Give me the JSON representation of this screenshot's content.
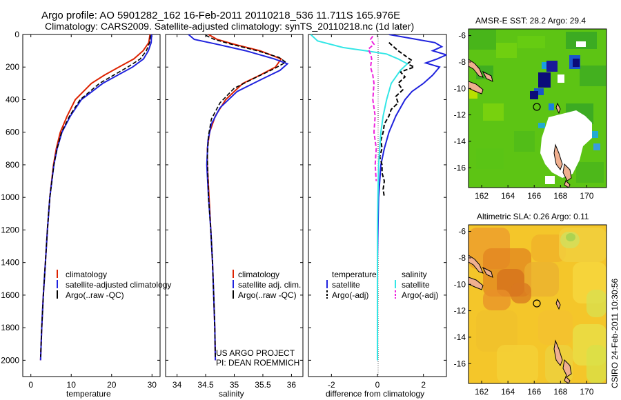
{
  "header": {
    "title_line1": "Argo profile: AO 5901282_162 16-Feb-2011 20110218_536 11.711S 165.976E",
    "title_line2": "Climatology: CARS2009. Satellite-adjusted climatology: synTS_20110218.nc (1d later)"
  },
  "side_label": "CSIRO 24-Feb-2011 10:30:56",
  "project_text": [
    "US ARGO PROJECT",
    "PI: DEAN ROEMMICH"
  ],
  "colors": {
    "climatology": "#dd2200",
    "satellite": "#1f22dd",
    "argo": "#000000",
    "sal_satellite": "#33e6e6",
    "sal_argo": "#ee22dd"
  },
  "chart_data": [
    {
      "type": "line",
      "id": "temperature",
      "xlabel": "temperature",
      "ylabel": "",
      "xlim": [
        -2,
        32
      ],
      "ylim": [
        2100,
        0
      ],
      "xticks": [
        0,
        10,
        20,
        30
      ],
      "yticks": [
        0,
        200,
        400,
        600,
        800,
        1000,
        1200,
        1400,
        1600,
        1800,
        2000
      ],
      "legend": [
        "climatology",
        "satellite-adjusted climatology",
        "Argo(..raw -QC)"
      ],
      "series": [
        {
          "name": "climatology",
          "y": [
            0,
            50,
            100,
            150,
            200,
            250,
            300,
            400,
            500,
            600,
            700,
            800,
            1000,
            1200,
            1400,
            1600,
            1800,
            2000
          ],
          "x": [
            29.5,
            29.2,
            27.8,
            25.5,
            21.8,
            18.2,
            15.0,
            11.0,
            9.0,
            7.3,
            6.3,
            5.6,
            4.7,
            4.1,
            3.6,
            3.1,
            2.7,
            2.4
          ]
        },
        {
          "name": "satellite-adjusted climatology",
          "y": [
            0,
            50,
            100,
            150,
            200,
            250,
            300,
            400,
            500,
            600,
            700,
            800,
            1000,
            1200,
            1400,
            1600,
            1800,
            2000
          ],
          "x": [
            29.9,
            29.8,
            29.1,
            27.9,
            25.2,
            21.5,
            17.8,
            12.5,
            9.8,
            7.7,
            6.5,
            5.7,
            4.7,
            4.1,
            3.6,
            3.1,
            2.7,
            2.4
          ]
        },
        {
          "name": "Argo(..raw -QC)",
          "y": [
            5,
            50,
            100,
            150,
            200,
            250,
            300,
            400,
            500,
            600,
            700,
            800,
            1000,
            1200,
            1400,
            1600,
            1800,
            1980
          ],
          "x": [
            29.6,
            29.4,
            28.6,
            27.1,
            24.0,
            20.5,
            17.0,
            12.2,
            9.6,
            7.6,
            6.5,
            5.7,
            4.7,
            4.1,
            3.6,
            3.1,
            2.7,
            2.4
          ]
        }
      ]
    },
    {
      "type": "line",
      "id": "salinity",
      "xlabel": "salinity",
      "ylabel": "",
      "xlim": [
        33.8,
        36.2
      ],
      "ylim": [
        2100,
        0
      ],
      "xticks": [
        34,
        34.5,
        35,
        35.5,
        36
      ],
      "legend": [
        "climatology",
        "satellite adj. clim.",
        "Argo(..raw -QC)"
      ],
      "series": [
        {
          "name": "climatology",
          "y": [
            0,
            30,
            60,
            100,
            150,
            200,
            250,
            300,
            400,
            500,
            600,
            700,
            800,
            1000,
            1200,
            1400,
            1600,
            1800,
            2000
          ],
          "x": [
            34.55,
            34.7,
            35.0,
            35.45,
            35.82,
            35.72,
            35.45,
            35.15,
            34.85,
            34.67,
            34.57,
            34.53,
            34.53,
            34.56,
            34.59,
            34.62,
            34.64,
            34.66,
            34.67
          ]
        },
        {
          "name": "satellite adj. clim.",
          "y": [
            0,
            30,
            60,
            100,
            150,
            180,
            220,
            280,
            350,
            450,
            550,
            650,
            800,
            1000,
            1200,
            1400,
            1600,
            1800,
            2000
          ],
          "x": [
            34.2,
            34.3,
            34.7,
            35.2,
            35.7,
            35.93,
            35.8,
            35.45,
            35.05,
            34.75,
            34.6,
            34.54,
            34.52,
            34.55,
            34.59,
            34.62,
            34.64,
            34.66,
            34.67
          ]
        },
        {
          "name": "Argo(..raw -QC)",
          "y": [
            5,
            30,
            60,
            100,
            140,
            170,
            210,
            260,
            330,
            420,
            520,
            620,
            750,
            1000,
            1200,
            1400,
            1600,
            1800,
            1980
          ],
          "x": [
            34.5,
            34.65,
            34.95,
            35.4,
            35.78,
            35.9,
            35.7,
            35.4,
            35.0,
            34.75,
            34.6,
            34.55,
            34.53,
            34.55,
            34.59,
            34.62,
            34.64,
            34.66,
            34.67
          ]
        }
      ]
    },
    {
      "type": "line",
      "id": "difference",
      "xlabel": "difference from climatology",
      "ylabel": "",
      "xlim": [
        -3,
        3
      ],
      "ylim": [
        2100,
        0
      ],
      "xticks": [
        -2,
        0,
        2
      ],
      "legend_titles": [
        "temperature",
        "salinity"
      ],
      "legend": [
        "satellite",
        "Argo(-adj)",
        "satellite",
        "Argo(-adj)"
      ],
      "series": [
        {
          "name": "temperature satellite",
          "y": [
            0,
            25,
            50,
            75,
            100,
            125,
            150,
            175,
            200,
            250,
            300,
            350,
            400,
            500,
            600,
            700,
            800,
            1000,
            1200,
            1400,
            1600,
            1800,
            2000
          ],
          "x": [
            0.5,
            1.5,
            2.5,
            2.8,
            2.4,
            3.0,
            2.6,
            2.1,
            2.7,
            2.4,
            2.0,
            1.5,
            1.2,
            0.8,
            0.5,
            0.3,
            0.15,
            0.05,
            0.02,
            0.0,
            0.0,
            0.0,
            0.0
          ]
        },
        {
          "name": "temperature Argo(-adj)",
          "y": [
            50,
            100,
            130,
            160,
            180,
            200,
            230,
            260,
            300,
            340,
            380,
            420,
            460,
            500,
            550,
            600,
            650,
            700,
            750,
            800,
            850,
            900,
            950,
            1000
          ],
          "x": [
            0.5,
            0.9,
            1.2,
            1.5,
            1.3,
            1.6,
            1.0,
            1.2,
            0.9,
            1.1,
            0.8,
            0.9,
            0.6,
            0.5,
            0.3,
            0.25,
            0.15,
            0.2,
            0.1,
            0.2,
            0.2,
            0.3,
            0.25,
            0.3
          ]
        },
        {
          "name": "salinity satellite",
          "y": [
            0,
            40,
            80,
            100,
            120,
            150,
            180,
            220,
            260,
            300,
            400,
            500,
            600,
            700,
            800,
            1000,
            1200,
            1400,
            1600,
            1800,
            2000
          ],
          "x": [
            -2.9,
            -2.6,
            -1.5,
            -0.5,
            0.4,
            0.9,
            1.3,
            1.0,
            0.8,
            0.6,
            0.4,
            0.25,
            0.15,
            0.1,
            0.05,
            0.02,
            0.0,
            0.0,
            0.0,
            0.0,
            0.0
          ]
        },
        {
          "name": "salinity Argo(-adj)",
          "y": [
            10,
            30,
            60,
            90,
            120,
            150,
            200,
            250,
            300,
            400,
            500,
            600,
            700,
            800,
            900
          ],
          "x": [
            -0.2,
            -0.3,
            -0.15,
            -0.4,
            -0.3,
            -0.25,
            -0.3,
            -0.2,
            -0.15,
            -0.2,
            -0.1,
            -0.15,
            -0.05,
            -0.1,
            -0.05
          ]
        }
      ]
    },
    {
      "type": "heatmap",
      "id": "sst_map",
      "title": "AMSR-E SST: 28.2 Argo: 29.4",
      "xlim": [
        161,
        171.5
      ],
      "ylim": [
        -17.5,
        -5.5
      ],
      "xticks": [
        162,
        164,
        166,
        168,
        170
      ],
      "yticks": [
        -6,
        -8,
        -10,
        -12,
        -14,
        -16
      ],
      "marker": {
        "lon": 166.0,
        "lat": -11.7
      }
    },
    {
      "type": "heatmap",
      "id": "sla_map",
      "title": "Altimetric SLA: 0.26 Argo: 0.11",
      "xlim": [
        161,
        171.5
      ],
      "ylim": [
        -17.5,
        -5.5
      ],
      "xticks": [
        162,
        164,
        166,
        168,
        170
      ],
      "yticks": [
        -6,
        -8,
        -10,
        -12,
        -14,
        -16
      ],
      "marker": {
        "lon": 166.0,
        "lat": -11.7
      }
    }
  ]
}
